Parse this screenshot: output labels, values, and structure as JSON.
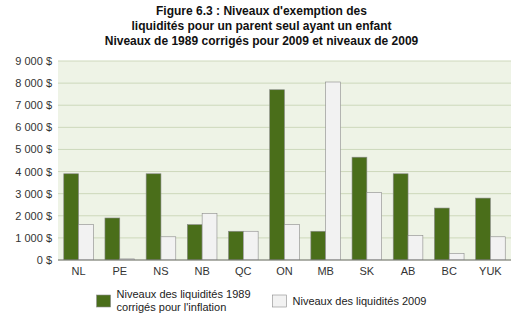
{
  "chart_data": {
    "type": "bar",
    "title": "Figure 6.3 : Niveaux d'exemption des\nliquidités pour un parent seul ayant un enfant\nNiveaux de 1989 corrigés pour 2009 et niveaux de 2009",
    "categories": [
      "NL",
      "PE",
      "NS",
      "NB",
      "QC",
      "ON",
      "MB",
      "SK",
      "AB",
      "BC",
      "YUK"
    ],
    "series": [
      {
        "name": "Niveaux des liquidités 1989\ncorrigés pour l'inflation",
        "color": "#4a6e1a",
        "values": [
          3900,
          1900,
          3900,
          1600,
          1300,
          7700,
          1300,
          4650,
          3900,
          2350,
          2800
        ]
      },
      {
        "name": "Niveaux des liquidités 2009",
        "color": "#f2f2f2",
        "values": [
          1600,
          50,
          1050,
          2100,
          1300,
          1600,
          8050,
          3050,
          1100,
          300,
          1050
        ]
      }
    ],
    "ylim": [
      0,
      9000
    ],
    "yticks": [
      {
        "value": 0,
        "label": "0 $"
      },
      {
        "value": 1000,
        "label": "1 000 $"
      },
      {
        "value": 2000,
        "label": "2 000 $"
      },
      {
        "value": 3000,
        "label": "3 000 $"
      },
      {
        "value": 4000,
        "label": "4 000 $"
      },
      {
        "value": 5000,
        "label": "5 000 $"
      },
      {
        "value": 6000,
        "label": "6 000 $"
      },
      {
        "value": 7000,
        "label": "7 000 $"
      },
      {
        "value": 8000,
        "label": "8 000 $"
      },
      {
        "value": 9000,
        "label": "9 000 $"
      }
    ],
    "grid": true,
    "legend": "bottom"
  }
}
